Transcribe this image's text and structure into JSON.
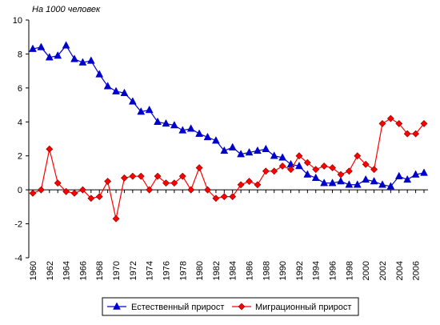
{
  "chart_data": {
    "type": "line",
    "title": "",
    "unit_label": "На 1000 человек",
    "xlabel": "",
    "ylabel": "",
    "x": [
      1960,
      1961,
      1962,
      1963,
      1964,
      1965,
      1966,
      1967,
      1968,
      1969,
      1970,
      1971,
      1972,
      1973,
      1974,
      1975,
      1976,
      1977,
      1978,
      1979,
      1980,
      1981,
      1982,
      1983,
      1984,
      1985,
      1986,
      1987,
      1988,
      1989,
      1990,
      1991,
      1992,
      1993,
      1994,
      1995,
      1996,
      1997,
      1998,
      1999,
      2000,
      2001,
      2002,
      2003,
      2004,
      2005,
      2006,
      2007
    ],
    "x_tick_labels": [
      "1960",
      "1962",
      "1964",
      "1966",
      "1968",
      "1970",
      "1972",
      "1974",
      "1976",
      "1978",
      "1980",
      "1982",
      "1984",
      "1986",
      "1988",
      "1990",
      "1992",
      "1994",
      "1996",
      "1998",
      "2000",
      "2002",
      "2004",
      "2006"
    ],
    "ylim": [
      -4,
      10
    ],
    "y_ticks": [
      -4,
      -2,
      0,
      2,
      4,
      6,
      8,
      10
    ],
    "grid": false,
    "legend_position": "bottom-center",
    "series": [
      {
        "name": "Естественный прирост",
        "color": "#0000cc",
        "marker": "triangle",
        "values": [
          8.3,
          8.4,
          7.8,
          7.9,
          8.5,
          7.7,
          7.5,
          7.6,
          6.8,
          6.1,
          5.8,
          5.7,
          5.2,
          4.6,
          4.7,
          4.0,
          3.9,
          3.8,
          3.5,
          3.6,
          3.3,
          3.1,
          2.9,
          2.3,
          2.5,
          2.1,
          2.2,
          2.3,
          2.4,
          2.0,
          1.9,
          1.5,
          1.4,
          0.9,
          0.7,
          0.4,
          0.4,
          0.5,
          0.3,
          0.3,
          0.6,
          0.5,
          0.3,
          0.2,
          0.8,
          0.6,
          0.9,
          1.0
        ]
      },
      {
        "name": "Миграционный прирост",
        "color": "#ff0000",
        "marker": "diamond",
        "values": [
          -0.2,
          0.0,
          2.4,
          0.4,
          -0.1,
          -0.2,
          0.0,
          -0.5,
          -0.4,
          0.5,
          -1.7,
          0.7,
          0.8,
          0.8,
          0.0,
          0.8,
          0.4,
          0.4,
          0.8,
          0.0,
          1.3,
          0.0,
          -0.5,
          -0.4,
          -0.4,
          0.3,
          0.5,
          0.3,
          1.1,
          1.1,
          1.4,
          1.2,
          2.0,
          1.6,
          1.2,
          1.4,
          1.3,
          0.9,
          1.1,
          2.0,
          1.5,
          1.2,
          3.9,
          4.2,
          3.9,
          3.3,
          3.3,
          3.9
        ]
      }
    ]
  }
}
